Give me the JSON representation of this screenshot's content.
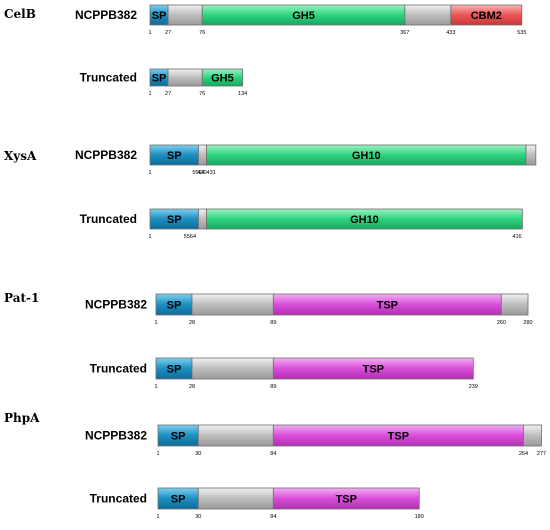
{
  "colors": {
    "sp": "#1b8fc2",
    "linker": "#bdbdbd",
    "gh": "#2ed47f",
    "cbm": "#ec5656",
    "tsp": "#d94ed9",
    "outline": "#6f6f6f"
  },
  "proteins": [
    {
      "name": "CelB",
      "rows": [
        {
          "label": "NCPPB382",
          "length": 535,
          "segments": [
            {
              "start": 1,
              "end": 27,
              "type": "sp",
              "label": "SP"
            },
            {
              "start": 27,
              "end": 76,
              "type": "linker",
              "label": ""
            },
            {
              "start": 76,
              "end": 367,
              "type": "gh",
              "label": "GH5"
            },
            {
              "start": 367,
              "end": 433,
              "type": "linker",
              "label": ""
            },
            {
              "start": 433,
              "end": 535,
              "type": "cbm",
              "label": "CBM2"
            }
          ],
          "ticks": [
            "1",
            "27",
            "76",
            "367",
            "433",
            "535"
          ]
        },
        {
          "label": "Truncated",
          "length": 134,
          "segments": [
            {
              "start": 1,
              "end": 27,
              "type": "sp",
              "label": "SP"
            },
            {
              "start": 27,
              "end": 76,
              "type": "linker",
              "label": ""
            },
            {
              "start": 76,
              "end": 134,
              "type": "gh",
              "label": "GH5"
            }
          ],
          "ticks": [
            "1",
            "27",
            "76",
            "134"
          ]
        }
      ]
    },
    {
      "name": "XysA",
      "rows": [
        {
          "label": "NCPPB382",
          "length": 431,
          "segments": [
            {
              "start": 1,
              "end": 55,
              "type": "sp",
              "label": "SP"
            },
            {
              "start": 55,
              "end": 64,
              "type": "linker",
              "label": ""
            },
            {
              "start": 64,
              "end": 420,
              "type": "gh",
              "label": "GH10"
            },
            {
              "start": 420,
              "end": 431,
              "type": "linker",
              "label": ""
            }
          ],
          "ticks": [
            "1",
            "5564",
            "420431"
          ]
        },
        {
          "label": "Truncated",
          "length": 416,
          "segments": [
            {
              "start": 1,
              "end": 55,
              "type": "sp",
              "label": "SP"
            },
            {
              "start": 55,
              "end": 64,
              "type": "linker",
              "label": ""
            },
            {
              "start": 64,
              "end": 416,
              "type": "gh",
              "label": "GH10"
            }
          ],
          "ticks": [
            "1",
            "5564",
            "416"
          ]
        }
      ]
    },
    {
      "name": "Pat-1",
      "rows": [
        {
          "label": "NCPPB382",
          "length": 280,
          "segments": [
            {
              "start": 1,
              "end": 28,
              "type": "sp",
              "label": "SP"
            },
            {
              "start": 28,
              "end": 89,
              "type": "linker",
              "label": ""
            },
            {
              "start": 89,
              "end": 260,
              "type": "tsp",
              "label": "TSP"
            },
            {
              "start": 260,
              "end": 280,
              "type": "linker",
              "label": ""
            }
          ],
          "ticks": [
            "1",
            "28",
            "89",
            "260",
            "280"
          ]
        },
        {
          "label": "Truncated",
          "length": 239,
          "segments": [
            {
              "start": 1,
              "end": 28,
              "type": "sp",
              "label": "SP"
            },
            {
              "start": 28,
              "end": 89,
              "type": "linker",
              "label": ""
            },
            {
              "start": 89,
              "end": 239,
              "type": "tsp",
              "label": "TSP"
            }
          ],
          "ticks": [
            "1",
            "28",
            "89",
            "239"
          ]
        }
      ]
    },
    {
      "name": "PhpA",
      "rows": [
        {
          "label": "NCPPB382",
          "length": 277,
          "segments": [
            {
              "start": 1,
              "end": 30,
              "type": "sp",
              "label": "SP"
            },
            {
              "start": 30,
              "end": 84,
              "type": "linker",
              "label": ""
            },
            {
              "start": 84,
              "end": 264,
              "type": "tsp",
              "label": "TSP"
            },
            {
              "start": 264,
              "end": 277,
              "type": "linker",
              "label": ""
            }
          ],
          "ticks": [
            "1",
            "30",
            "84",
            "264",
            "277"
          ]
        },
        {
          "label": "Truncated",
          "length": 189,
          "segments": [
            {
              "start": 1,
              "end": 30,
              "type": "sp",
              "label": "SP"
            },
            {
              "start": 30,
              "end": 84,
              "type": "linker",
              "label": ""
            },
            {
              "start": 84,
              "end": 189,
              "type": "tsp",
              "label": "TSP"
            }
          ],
          "ticks": [
            "1",
            "30",
            "84",
            "189"
          ]
        }
      ]
    }
  ]
}
